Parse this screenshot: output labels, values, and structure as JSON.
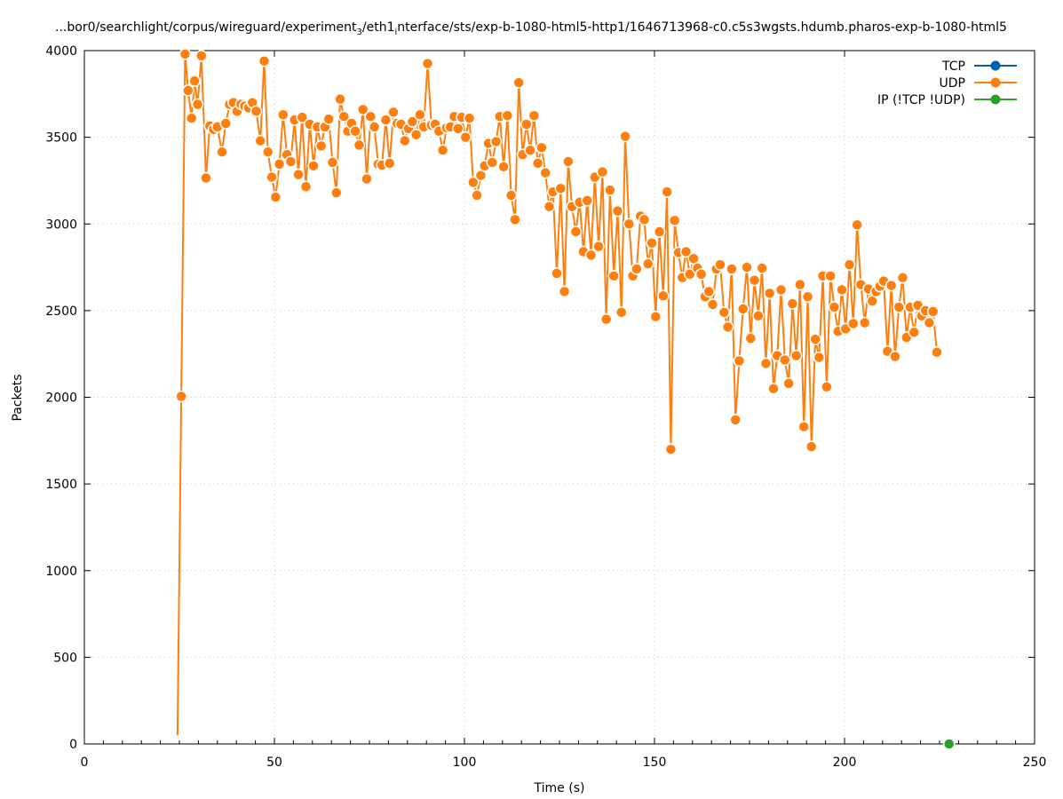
{
  "colors": {
    "tcp": "#0060ad",
    "udp": "#ff7f0e",
    "ip": "#2ca02c",
    "grid": "#c8c8c8",
    "axis": "#000000"
  },
  "chart_data": {
    "type": "line",
    "title": "...bor0/searchlight/corpus/wireguard/experiment",
    "title_sub": "3",
    "title_mid": "/eth1",
    "title_sub2": "i",
    "title_tail": "nterface/sts/exp-b-1080-html5-http1/1646713968-c0.c5s3wgsts.hdumb.pharos-exp-b-1080-html5",
    "xlabel": "Time (s)",
    "ylabel": "Packets",
    "xlim": [
      0,
      250
    ],
    "ylim": [
      0,
      4000
    ],
    "x_ticks": [
      0,
      50,
      100,
      150,
      200,
      250
    ],
    "y_ticks": [
      0,
      500,
      1000,
      1500,
      2000,
      2500,
      3000,
      3500,
      4000
    ],
    "grid": true,
    "legend_position": "top-right",
    "series": [
      {
        "name": "TCP",
        "color_key": "tcp",
        "points": []
      },
      {
        "name": "UDP",
        "color_key": "udp",
        "points": [
          [
            24.5,
            50
          ],
          [
            25.5,
            2005
          ],
          [
            26.5,
            3980
          ],
          [
            27.3,
            3770
          ],
          [
            28.2,
            3610
          ],
          [
            29.0,
            3825
          ],
          [
            29.8,
            3690
          ],
          [
            30.8,
            3970
          ],
          [
            32.0,
            3265
          ],
          [
            33.0,
            3565
          ],
          [
            34.0,
            3545
          ],
          [
            35.0,
            3560
          ],
          [
            36.2,
            3415
          ],
          [
            37.2,
            3580
          ],
          [
            38.2,
            3690
          ],
          [
            39.2,
            3700
          ],
          [
            40.2,
            3650
          ],
          [
            41.2,
            3690
          ],
          [
            42.2,
            3680
          ],
          [
            43.2,
            3670
          ],
          [
            44.2,
            3700
          ],
          [
            45.2,
            3650
          ],
          [
            46.3,
            3480
          ],
          [
            47.3,
            3940
          ],
          [
            48.3,
            3415
          ],
          [
            49.3,
            3270
          ],
          [
            50.3,
            3155
          ],
          [
            51.3,
            3345
          ],
          [
            52.3,
            3630
          ],
          [
            53.3,
            3400
          ],
          [
            54.3,
            3360
          ],
          [
            55.3,
            3600
          ],
          [
            56.3,
            3285
          ],
          [
            57.3,
            3615
          ],
          [
            58.3,
            3215
          ],
          [
            59.3,
            3575
          ],
          [
            60.3,
            3335
          ],
          [
            61.3,
            3560
          ],
          [
            62.3,
            3450
          ],
          [
            63.3,
            3560
          ],
          [
            64.3,
            3605
          ],
          [
            65.3,
            3355
          ],
          [
            66.3,
            3180
          ],
          [
            67.3,
            3720
          ],
          [
            68.3,
            3620
          ],
          [
            69.3,
            3535
          ],
          [
            70.3,
            3580
          ],
          [
            71.3,
            3535
          ],
          [
            72.3,
            3455
          ],
          [
            73.3,
            3660
          ],
          [
            74.3,
            3260
          ],
          [
            75.3,
            3620
          ],
          [
            76.3,
            3560
          ],
          [
            77.3,
            3345
          ],
          [
            78.3,
            3340
          ],
          [
            79.3,
            3600
          ],
          [
            80.3,
            3350
          ],
          [
            81.3,
            3645
          ],
          [
            82.3,
            3580
          ],
          [
            83.3,
            3575
          ],
          [
            84.3,
            3480
          ],
          [
            85.3,
            3550
          ],
          [
            86.3,
            3590
          ],
          [
            87.3,
            3515
          ],
          [
            88.3,
            3630
          ],
          [
            89.3,
            3560
          ],
          [
            90.3,
            3925
          ],
          [
            91.3,
            3570
          ],
          [
            92.3,
            3575
          ],
          [
            93.3,
            3535
          ],
          [
            94.3,
            3425
          ],
          [
            95.3,
            3555
          ],
          [
            96.3,
            3560
          ],
          [
            97.3,
            3620
          ],
          [
            98.3,
            3550
          ],
          [
            99.3,
            3615
          ],
          [
            100.3,
            3500
          ],
          [
            101.3,
            3610
          ],
          [
            102.3,
            3240
          ],
          [
            103.3,
            3165
          ],
          [
            104.3,
            3280
          ],
          [
            105.3,
            3335
          ],
          [
            106.3,
            3465
          ],
          [
            107.3,
            3355
          ],
          [
            108.3,
            3475
          ],
          [
            109.3,
            3620
          ],
          [
            110.3,
            3330
          ],
          [
            111.3,
            3625
          ],
          [
            112.3,
            3165
          ],
          [
            113.3,
            3025
          ],
          [
            114.3,
            3815
          ],
          [
            115.3,
            3400
          ],
          [
            116.3,
            3575
          ],
          [
            117.3,
            3425
          ],
          [
            118.3,
            3625
          ],
          [
            119.3,
            3350
          ],
          [
            120.3,
            3440
          ],
          [
            121.3,
            3295
          ],
          [
            122.3,
            3100
          ],
          [
            123.3,
            3185
          ],
          [
            124.3,
            2715
          ],
          [
            125.3,
            3205
          ],
          [
            126.3,
            2610
          ],
          [
            127.3,
            3360
          ],
          [
            128.3,
            3100
          ],
          [
            129.3,
            2955
          ],
          [
            130.3,
            3125
          ],
          [
            131.3,
            2840
          ],
          [
            132.3,
            3135
          ],
          [
            133.3,
            2820
          ],
          [
            134.3,
            3270
          ],
          [
            135.3,
            2870
          ],
          [
            136.3,
            3300
          ],
          [
            137.3,
            2450
          ],
          [
            138.3,
            3195
          ],
          [
            139.3,
            2700
          ],
          [
            140.3,
            3075
          ],
          [
            141.3,
            2490
          ],
          [
            142.3,
            3505
          ],
          [
            143.3,
            3000
          ],
          [
            144.3,
            2700
          ],
          [
            145.3,
            2740
          ],
          [
            146.3,
            3045
          ],
          [
            147.3,
            3025
          ],
          [
            148.3,
            2770
          ],
          [
            149.3,
            2890
          ],
          [
            150.3,
            2465
          ],
          [
            151.3,
            2955
          ],
          [
            152.3,
            2585
          ],
          [
            153.3,
            3185
          ],
          [
            154.3,
            1700
          ],
          [
            155.3,
            3020
          ],
          [
            156.3,
            2835
          ],
          [
            157.3,
            2690
          ],
          [
            158.3,
            2840
          ],
          [
            159.3,
            2710
          ],
          [
            160.3,
            2800
          ],
          [
            161.3,
            2745
          ],
          [
            162.3,
            2710
          ],
          [
            163.3,
            2580
          ],
          [
            164.3,
            2610
          ],
          [
            165.3,
            2535
          ],
          [
            166.3,
            2740
          ],
          [
            167.3,
            2765
          ],
          [
            168.3,
            2490
          ],
          [
            169.3,
            2405
          ],
          [
            170.3,
            2740
          ],
          [
            171.3,
            1870
          ],
          [
            172.3,
            2210
          ],
          [
            173.3,
            2510
          ],
          [
            174.3,
            2750
          ],
          [
            175.3,
            2340
          ],
          [
            176.3,
            2675
          ],
          [
            177.3,
            2470
          ],
          [
            178.3,
            2745
          ],
          [
            179.3,
            2195
          ],
          [
            180.3,
            2600
          ],
          [
            181.3,
            2050
          ],
          [
            182.3,
            2240
          ],
          [
            183.3,
            2620
          ],
          [
            184.3,
            2215
          ],
          [
            185.3,
            2080
          ],
          [
            186.3,
            2540
          ],
          [
            187.3,
            2240
          ],
          [
            188.3,
            2650
          ],
          [
            189.3,
            1830
          ],
          [
            190.3,
            2580
          ],
          [
            191.3,
            1715
          ],
          [
            192.3,
            2335
          ],
          [
            193.3,
            2230
          ],
          [
            194.3,
            2700
          ],
          [
            195.3,
            2060
          ],
          [
            196.3,
            2700
          ],
          [
            197.3,
            2520
          ],
          [
            198.3,
            2380
          ],
          [
            199.3,
            2620
          ],
          [
            200.3,
            2395
          ],
          [
            201.3,
            2765
          ],
          [
            202.3,
            2425
          ],
          [
            203.3,
            2995
          ],
          [
            204.3,
            2650
          ],
          [
            205.3,
            2430
          ],
          [
            206.3,
            2625
          ],
          [
            207.3,
            2555
          ],
          [
            208.3,
            2610
          ],
          [
            209.3,
            2640
          ],
          [
            210.3,
            2670
          ],
          [
            211.3,
            2265
          ],
          [
            212.3,
            2645
          ],
          [
            213.3,
            2235
          ],
          [
            214.3,
            2520
          ],
          [
            215.3,
            2690
          ],
          [
            216.3,
            2345
          ],
          [
            217.3,
            2520
          ],
          [
            218.3,
            2375
          ],
          [
            219.3,
            2530
          ],
          [
            220.3,
            2470
          ],
          [
            221.3,
            2500
          ],
          [
            222.3,
            2430
          ],
          [
            223.3,
            2495
          ],
          [
            224.3,
            2260
          ]
        ]
      },
      {
        "name": "IP (!TCP  !UDP)",
        "color_key": "ip",
        "points": [
          [
            227.5,
            0
          ]
        ]
      }
    ]
  }
}
